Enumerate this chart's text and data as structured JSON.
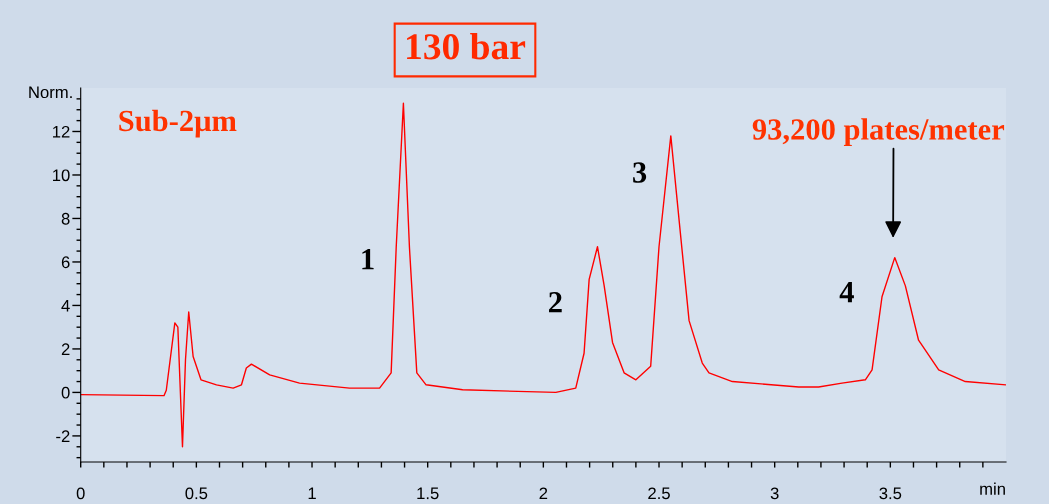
{
  "chart_data": {
    "type": "line",
    "xlabel": "min",
    "ylabel": "Norm.",
    "x": [
      0,
      0.36,
      0.37,
      0.407,
      0.42,
      0.44,
      0.453,
      0.467,
      0.486,
      0.52,
      0.587,
      0.659,
      0.695,
      0.716,
      0.738,
      0.817,
      0.946,
      1.162,
      1.292,
      1.342,
      1.364,
      1.395,
      1.421,
      1.453,
      1.493,
      1.651,
      2.054,
      2.14,
      2.176,
      2.198,
      2.234,
      2.263,
      2.299,
      2.349,
      2.4,
      2.464,
      2.5,
      2.551,
      2.587,
      2.63,
      2.687,
      2.716,
      2.817,
      3.104,
      3.19,
      3.291,
      3.392,
      3.421,
      3.464,
      3.519,
      3.565,
      3.622,
      3.709,
      3.824,
      3.997
    ],
    "series": [
      {
        "color": "#ff0000",
        "values": [
          -0.1,
          -0.15,
          0.1,
          3.2,
          3.0,
          -2.5,
          1.5,
          3.7,
          1.65,
          0.58,
          0.35,
          0.2,
          0.35,
          1.12,
          1.3,
          0.81,
          0.43,
          0.2,
          0.2,
          0.9,
          6.7,
          13.3,
          6.7,
          0.9,
          0.35,
          0.12,
          0.0,
          0.2,
          1.8,
          5.2,
          6.7,
          4.9,
          2.3,
          0.9,
          0.58,
          1.2,
          6.7,
          11.8,
          7.9,
          3.3,
          1.35,
          0.9,
          0.5,
          0.25,
          0.25,
          0.43,
          0.58,
          1.04,
          4.4,
          6.2,
          4.9,
          2.4,
          1.04,
          0.5,
          0.35
        ]
      }
    ],
    "xlim": [
      0,
      4
    ],
    "ylim": [
      -3.2,
      14
    ],
    "xticks": [
      0,
      {
        "value": 0.1,
        "label": null
      },
      {
        "value": 0.2,
        "label": null
      },
      {
        "value": 0.3,
        "label": null
      },
      {
        "value": 0.4,
        "label": null
      },
      0.5,
      {
        "value": 0.6,
        "label": null
      },
      {
        "value": 0.7,
        "label": null
      },
      {
        "value": 0.8,
        "label": null
      },
      {
        "value": 0.9,
        "label": null
      },
      1,
      {
        "value": 1.1,
        "label": null
      },
      {
        "value": 1.2,
        "label": null
      },
      {
        "value": 1.3,
        "label": null
      },
      {
        "value": 1.4,
        "label": null
      },
      1.5,
      {
        "value": 1.6,
        "label": null
      },
      {
        "value": 1.7,
        "label": null
      },
      {
        "value": 1.8,
        "label": null
      },
      {
        "value": 1.9,
        "label": null
      },
      2,
      {
        "value": 2.1,
        "label": null
      },
      {
        "value": 2.2,
        "label": null
      },
      {
        "value": 2.3,
        "label": null
      },
      {
        "value": 2.4,
        "label": null
      },
      2.5,
      {
        "value": 2.6,
        "label": null
      },
      {
        "value": 2.7,
        "label": null
      },
      {
        "value": 2.8,
        "label": null
      },
      {
        "value": 2.9,
        "label": null
      },
      3,
      {
        "value": 3.1,
        "label": null
      },
      {
        "value": 3.2,
        "label": null
      },
      {
        "value": 3.3,
        "label": null
      },
      {
        "value": 3.4,
        "label": null
      },
      3.5,
      {
        "value": 3.6,
        "label": null
      },
      {
        "value": 3.7,
        "label": null
      },
      {
        "value": 3.8,
        "label": null
      },
      {
        "value": 3.9,
        "label": null
      }
    ],
    "yticks": [
      {
        "value": -3,
        "label": null
      },
      {
        "value": -2.5,
        "label": null
      },
      -2,
      {
        "value": -1.5,
        "label": null
      },
      {
        "value": -1,
        "label": null
      },
      {
        "value": -0.5,
        "label": null
      },
      0,
      {
        "value": 0.5,
        "label": null
      },
      {
        "value": 1,
        "label": null
      },
      {
        "value": 1.5,
        "label": null
      },
      2,
      {
        "value": 2.5,
        "label": null
      },
      {
        "value": 3,
        "label": null
      },
      {
        "value": 3.5,
        "label": null
      },
      4,
      {
        "value": 4.5,
        "label": null
      },
      {
        "value": 5,
        "label": null
      },
      {
        "value": 5.5,
        "label": null
      },
      6,
      {
        "value": 6.5,
        "label": null
      },
      {
        "value": 7,
        "label": null
      },
      {
        "value": 7.5,
        "label": null
      },
      8,
      {
        "value": 8.5,
        "label": null
      },
      {
        "value": 9,
        "label": null
      },
      {
        "value": 9.5,
        "label": null
      },
      10,
      {
        "value": 10.5,
        "label": null
      },
      {
        "value": 11,
        "label": null
      },
      {
        "value": 11.5,
        "label": null
      },
      12,
      {
        "value": 12.5,
        "label": null
      },
      {
        "value": 13,
        "label": null
      },
      {
        "value": 13.5,
        "label": null
      }
    ],
    "grid": false,
    "marker": "none",
    "line_style": "solid",
    "annotations": [
      "130 bar",
      "Sub-2μm",
      "93,200 plates/meter",
      "1",
      "2",
      "3",
      "4"
    ]
  }
}
